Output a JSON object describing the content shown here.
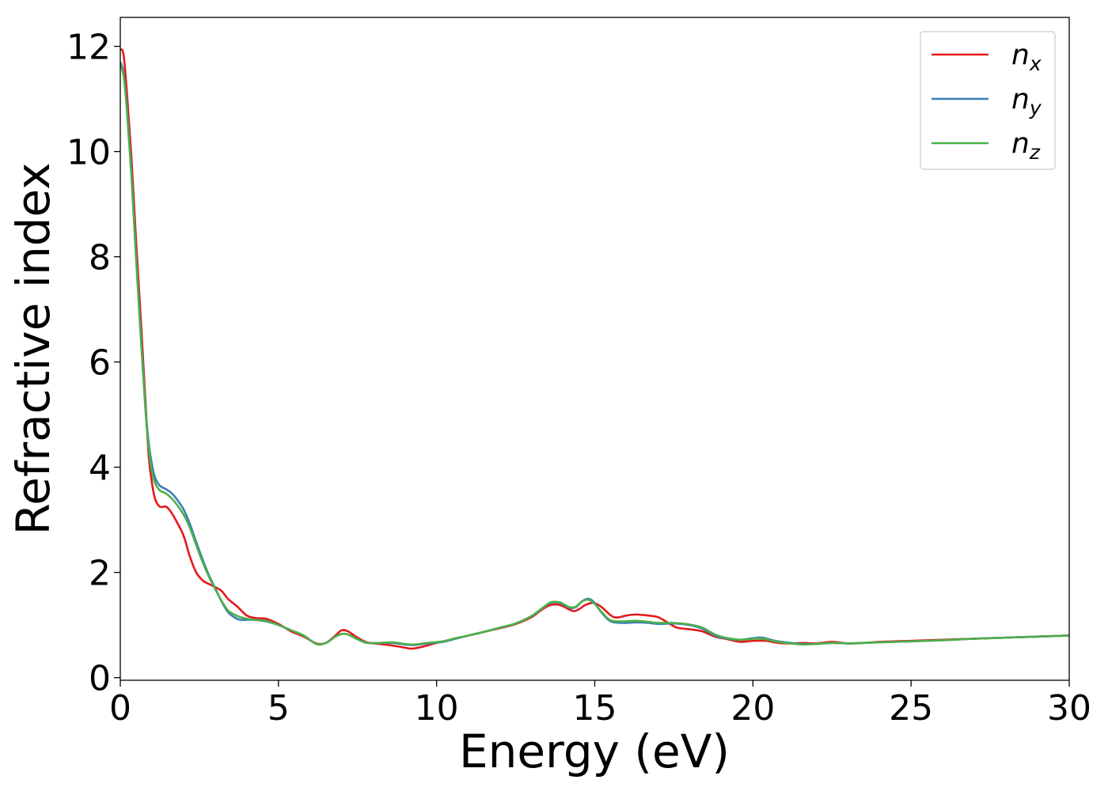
{
  "chart_data": {
    "type": "line",
    "title": "",
    "xlabel": "Energy (eV)",
    "ylabel": "Refractive index",
    "xlim": [
      0,
      30
    ],
    "ylim": [
      -0.05,
      12.55
    ],
    "xticks": [
      0,
      5,
      10,
      15,
      20,
      25,
      30
    ],
    "yticks": [
      0,
      2,
      4,
      6,
      8,
      10,
      12
    ],
    "xtick_labels": [
      "0",
      "5",
      "10",
      "15",
      "20",
      "25",
      "30"
    ],
    "ytick_labels": [
      "0",
      "2",
      "4",
      "6",
      "8",
      "10",
      "12"
    ],
    "grid": false,
    "legend": {
      "position": "top-right",
      "entries": [
        {
          "base": "n",
          "sub": "x"
        },
        {
          "base": "n",
          "sub": "y"
        },
        {
          "base": "n",
          "sub": "z"
        }
      ]
    },
    "series": [
      {
        "name": "n_x",
        "color": "#e41a1c",
        "points": [
          [
            0,
            11.95
          ],
          [
            0.1,
            11.85
          ],
          [
            0.2,
            11.2
          ],
          [
            0.35,
            9.9
          ],
          [
            0.5,
            8.3
          ],
          [
            0.65,
            6.8
          ],
          [
            0.8,
            5.2
          ],
          [
            0.9,
            4.2
          ],
          [
            1.0,
            3.7
          ],
          [
            1.1,
            3.4
          ],
          [
            1.25,
            3.25
          ],
          [
            1.45,
            3.25
          ],
          [
            1.6,
            3.15
          ],
          [
            1.75,
            3.0
          ],
          [
            2.0,
            2.7
          ],
          [
            2.2,
            2.3
          ],
          [
            2.4,
            2.0
          ],
          [
            2.6,
            1.85
          ],
          [
            2.8,
            1.78
          ],
          [
            3.0,
            1.72
          ],
          [
            3.2,
            1.65
          ],
          [
            3.4,
            1.5
          ],
          [
            3.7,
            1.35
          ],
          [
            4.0,
            1.18
          ],
          [
            4.3,
            1.13
          ],
          [
            4.6,
            1.12
          ],
          [
            5.0,
            1.02
          ],
          [
            5.4,
            0.88
          ],
          [
            5.8,
            0.78
          ],
          [
            6.2,
            0.65
          ],
          [
            6.5,
            0.66
          ],
          [
            6.8,
            0.8
          ],
          [
            7.0,
            0.9
          ],
          [
            7.2,
            0.88
          ],
          [
            7.5,
            0.76
          ],
          [
            7.8,
            0.67
          ],
          [
            8.2,
            0.64
          ],
          [
            8.6,
            0.61
          ],
          [
            9.0,
            0.57
          ],
          [
            9.2,
            0.55
          ],
          [
            9.5,
            0.58
          ],
          [
            10.0,
            0.66
          ],
          [
            10.5,
            0.73
          ],
          [
            11.0,
            0.8
          ],
          [
            11.5,
            0.87
          ],
          [
            12.0,
            0.94
          ],
          [
            12.5,
            1.02
          ],
          [
            13.0,
            1.15
          ],
          [
            13.3,
            1.28
          ],
          [
            13.6,
            1.38
          ],
          [
            13.9,
            1.38
          ],
          [
            14.3,
            1.27
          ],
          [
            14.5,
            1.3
          ],
          [
            14.7,
            1.38
          ],
          [
            14.95,
            1.42
          ],
          [
            15.2,
            1.35
          ],
          [
            15.6,
            1.15
          ],
          [
            16.0,
            1.18
          ],
          [
            16.3,
            1.2
          ],
          [
            16.7,
            1.18
          ],
          [
            17.0,
            1.15
          ],
          [
            17.3,
            1.05
          ],
          [
            17.6,
            0.95
          ],
          [
            18.0,
            0.92
          ],
          [
            18.4,
            0.88
          ],
          [
            18.8,
            0.78
          ],
          [
            19.2,
            0.73
          ],
          [
            19.6,
            0.68
          ],
          [
            20.0,
            0.7
          ],
          [
            20.4,
            0.7
          ],
          [
            20.8,
            0.66
          ],
          [
            21.2,
            0.65
          ],
          [
            21.6,
            0.66
          ],
          [
            22.0,
            0.65
          ],
          [
            22.5,
            0.68
          ],
          [
            23.0,
            0.65
          ],
          [
            23.5,
            0.66
          ],
          [
            24.0,
            0.68
          ],
          [
            25.0,
            0.7
          ],
          [
            26.0,
            0.72
          ],
          [
            27.0,
            0.74
          ],
          [
            28.0,
            0.76
          ],
          [
            29.0,
            0.78
          ],
          [
            30.0,
            0.8
          ]
        ]
      },
      {
        "name": "n_y",
        "color": "#377eb8",
        "points": [
          [
            0,
            11.7
          ],
          [
            0.1,
            11.5
          ],
          [
            0.2,
            10.9
          ],
          [
            0.35,
            9.6
          ],
          [
            0.5,
            8.0
          ],
          [
            0.65,
            6.5
          ],
          [
            0.8,
            5.1
          ],
          [
            0.9,
            4.45
          ],
          [
            1.0,
            4.05
          ],
          [
            1.1,
            3.8
          ],
          [
            1.25,
            3.65
          ],
          [
            1.45,
            3.58
          ],
          [
            1.6,
            3.52
          ],
          [
            1.75,
            3.42
          ],
          [
            2.0,
            3.2
          ],
          [
            2.2,
            2.92
          ],
          [
            2.4,
            2.58
          ],
          [
            2.6,
            2.25
          ],
          [
            2.8,
            1.95
          ],
          [
            3.0,
            1.7
          ],
          [
            3.2,
            1.45
          ],
          [
            3.4,
            1.25
          ],
          [
            3.6,
            1.15
          ],
          [
            3.8,
            1.1
          ],
          [
            4.2,
            1.1
          ],
          [
            4.6,
            1.07
          ],
          [
            5.0,
            1.0
          ],
          [
            5.4,
            0.9
          ],
          [
            5.8,
            0.8
          ],
          [
            6.2,
            0.64
          ],
          [
            6.5,
            0.66
          ],
          [
            6.8,
            0.78
          ],
          [
            7.0,
            0.83
          ],
          [
            7.2,
            0.82
          ],
          [
            7.5,
            0.73
          ],
          [
            7.8,
            0.66
          ],
          [
            8.2,
            0.66
          ],
          [
            8.6,
            0.66
          ],
          [
            9.0,
            0.63
          ],
          [
            9.3,
            0.62
          ],
          [
            9.7,
            0.65
          ],
          [
            10.2,
            0.68
          ],
          [
            10.6,
            0.74
          ],
          [
            11.0,
            0.8
          ],
          [
            11.5,
            0.87
          ],
          [
            12.0,
            0.95
          ],
          [
            12.5,
            1.03
          ],
          [
            13.0,
            1.17
          ],
          [
            13.3,
            1.3
          ],
          [
            13.6,
            1.42
          ],
          [
            13.9,
            1.42
          ],
          [
            14.2,
            1.33
          ],
          [
            14.4,
            1.34
          ],
          [
            14.6,
            1.45
          ],
          [
            14.8,
            1.5
          ],
          [
            15.0,
            1.42
          ],
          [
            15.2,
            1.25
          ],
          [
            15.5,
            1.07
          ],
          [
            15.9,
            1.04
          ],
          [
            16.3,
            1.05
          ],
          [
            16.7,
            1.04
          ],
          [
            17.0,
            1.02
          ],
          [
            17.5,
            1.03
          ],
          [
            18.0,
            1.0
          ],
          [
            18.4,
            0.93
          ],
          [
            18.8,
            0.8
          ],
          [
            19.2,
            0.74
          ],
          [
            19.6,
            0.72
          ],
          [
            20.0,
            0.75
          ],
          [
            20.3,
            0.76
          ],
          [
            20.7,
            0.7
          ],
          [
            21.2,
            0.66
          ],
          [
            21.6,
            0.64
          ],
          [
            22.0,
            0.64
          ],
          [
            22.5,
            0.66
          ],
          [
            23.0,
            0.65
          ],
          [
            23.5,
            0.66
          ],
          [
            24.0,
            0.67
          ],
          [
            25.0,
            0.69
          ],
          [
            26.0,
            0.71
          ],
          [
            27.0,
            0.74
          ],
          [
            28.0,
            0.76
          ],
          [
            29.0,
            0.78
          ],
          [
            30.0,
            0.8
          ]
        ]
      },
      {
        "name": "n_z",
        "color": "#4daf4a",
        "points": [
          [
            0,
            11.65
          ],
          [
            0.1,
            11.45
          ],
          [
            0.2,
            10.85
          ],
          [
            0.35,
            9.55
          ],
          [
            0.5,
            7.95
          ],
          [
            0.65,
            6.45
          ],
          [
            0.8,
            5.05
          ],
          [
            0.9,
            4.35
          ],
          [
            1.0,
            3.92
          ],
          [
            1.1,
            3.7
          ],
          [
            1.25,
            3.56
          ],
          [
            1.45,
            3.5
          ],
          [
            1.6,
            3.42
          ],
          [
            1.75,
            3.32
          ],
          [
            2.0,
            3.1
          ],
          [
            2.2,
            2.85
          ],
          [
            2.4,
            2.52
          ],
          [
            2.6,
            2.2
          ],
          [
            2.8,
            1.92
          ],
          [
            3.0,
            1.68
          ],
          [
            3.2,
            1.46
          ],
          [
            3.4,
            1.28
          ],
          [
            3.6,
            1.2
          ],
          [
            3.8,
            1.15
          ],
          [
            4.2,
            1.1
          ],
          [
            4.6,
            1.08
          ],
          [
            5.0,
            1.0
          ],
          [
            5.4,
            0.9
          ],
          [
            5.8,
            0.8
          ],
          [
            6.2,
            0.64
          ],
          [
            6.5,
            0.66
          ],
          [
            6.8,
            0.78
          ],
          [
            7.0,
            0.83
          ],
          [
            7.2,
            0.82
          ],
          [
            7.5,
            0.73
          ],
          [
            7.8,
            0.66
          ],
          [
            8.2,
            0.66
          ],
          [
            8.6,
            0.67
          ],
          [
            9.0,
            0.64
          ],
          [
            9.3,
            0.63
          ],
          [
            9.7,
            0.66
          ],
          [
            10.2,
            0.69
          ],
          [
            10.6,
            0.75
          ],
          [
            11.0,
            0.8
          ],
          [
            11.5,
            0.87
          ],
          [
            12.0,
            0.95
          ],
          [
            12.5,
            1.03
          ],
          [
            13.0,
            1.17
          ],
          [
            13.3,
            1.3
          ],
          [
            13.6,
            1.43
          ],
          [
            13.9,
            1.43
          ],
          [
            14.2,
            1.34
          ],
          [
            14.4,
            1.35
          ],
          [
            14.6,
            1.45
          ],
          [
            14.8,
            1.48
          ],
          [
            15.0,
            1.4
          ],
          [
            15.2,
            1.26
          ],
          [
            15.5,
            1.09
          ],
          [
            15.9,
            1.07
          ],
          [
            16.3,
            1.08
          ],
          [
            16.7,
            1.06
          ],
          [
            17.0,
            1.04
          ],
          [
            17.5,
            1.04
          ],
          [
            18.0,
            1.01
          ],
          [
            18.4,
            0.95
          ],
          [
            18.8,
            0.82
          ],
          [
            19.2,
            0.75
          ],
          [
            19.6,
            0.72
          ],
          [
            20.0,
            0.74
          ],
          [
            20.3,
            0.74
          ],
          [
            20.7,
            0.69
          ],
          [
            21.2,
            0.65
          ],
          [
            21.6,
            0.63
          ],
          [
            22.0,
            0.64
          ],
          [
            22.5,
            0.66
          ],
          [
            23.0,
            0.65
          ],
          [
            23.5,
            0.66
          ],
          [
            24.0,
            0.67
          ],
          [
            25.0,
            0.69
          ],
          [
            26.0,
            0.71
          ],
          [
            27.0,
            0.74
          ],
          [
            28.0,
            0.76
          ],
          [
            29.0,
            0.78
          ],
          [
            30.0,
            0.8
          ]
        ]
      }
    ]
  }
}
